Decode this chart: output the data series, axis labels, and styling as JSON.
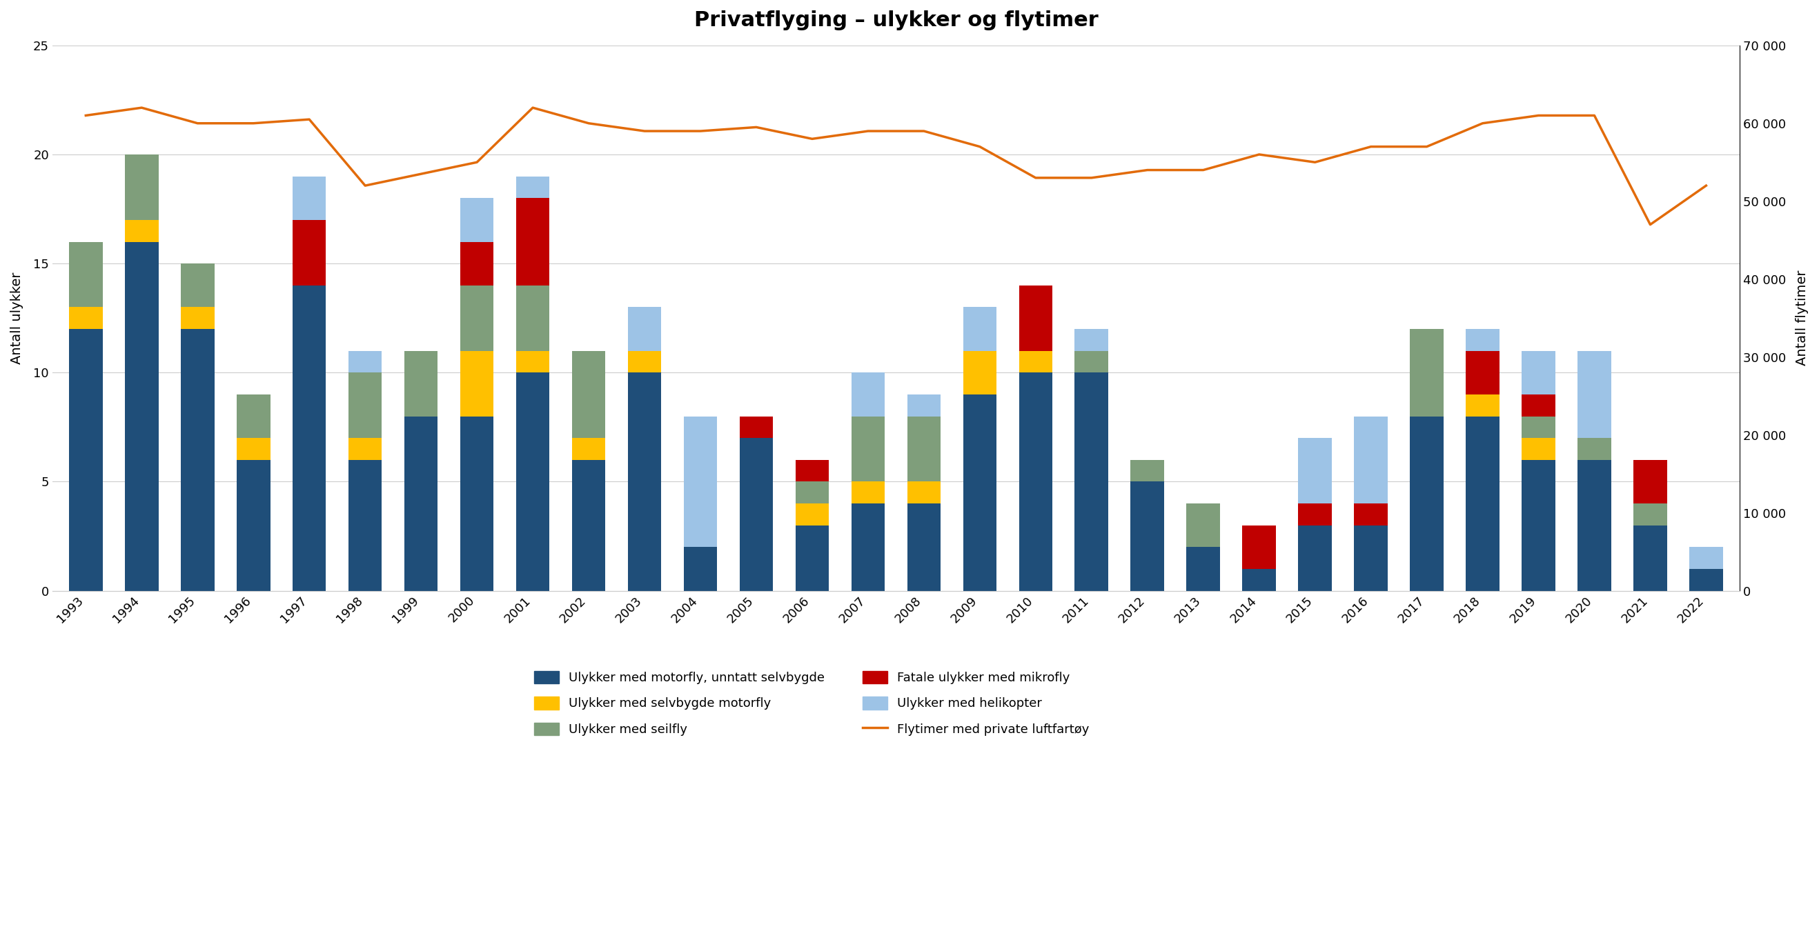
{
  "title": "Privatflyging – ulykker og flytimer",
  "years": [
    1993,
    1994,
    1995,
    1996,
    1997,
    1998,
    1999,
    2000,
    2001,
    2002,
    2003,
    2004,
    2005,
    2006,
    2007,
    2008,
    2009,
    2010,
    2011,
    2012,
    2013,
    2014,
    2015,
    2016,
    2017,
    2018,
    2019,
    2020,
    2021,
    2022
  ],
  "motorfly": [
    12,
    16,
    12,
    6,
    14,
    6,
    8,
    8,
    10,
    6,
    10,
    2,
    7,
    3,
    4,
    4,
    9,
    10,
    10,
    5,
    2,
    1,
    3,
    3,
    8,
    8,
    6,
    6,
    3,
    1
  ],
  "selvbygde": [
    1,
    1,
    1,
    1,
    0,
    1,
    0,
    3,
    1,
    1,
    1,
    0,
    0,
    1,
    1,
    1,
    2,
    1,
    0,
    0,
    0,
    0,
    0,
    0,
    0,
    1,
    1,
    0,
    0,
    0
  ],
  "seilfly": [
    3,
    3,
    2,
    2,
    0,
    3,
    3,
    3,
    3,
    4,
    0,
    0,
    0,
    1,
    3,
    3,
    0,
    0,
    1,
    1,
    2,
    0,
    0,
    0,
    4,
    0,
    1,
    1,
    1,
    0
  ],
  "mikrofly_fatal": [
    0,
    0,
    0,
    0,
    3,
    0,
    0,
    2,
    4,
    0,
    0,
    0,
    1,
    1,
    0,
    0,
    0,
    3,
    0,
    0,
    0,
    2,
    1,
    1,
    0,
    2,
    1,
    0,
    2,
    0
  ],
  "helikopter": [
    0,
    0,
    0,
    0,
    2,
    1,
    0,
    2,
    1,
    0,
    2,
    6,
    0,
    0,
    2,
    1,
    2,
    0,
    1,
    0,
    0,
    0,
    3,
    4,
    0,
    1,
    2,
    4,
    0,
    1
  ],
  "flytimer": [
    61000,
    62000,
    60000,
    60000,
    60500,
    52000,
    53500,
    55000,
    62000,
    60000,
    59000,
    59000,
    59500,
    58000,
    59000,
    59000,
    57000,
    53000,
    53000,
    54000,
    54000,
    56000,
    55000,
    57000,
    57000,
    60000,
    61000,
    61000,
    47000,
    52000
  ],
  "ylabel_left": "Antall ulykker",
  "ylabel_right": "Antall flytimer",
  "ylim_left": [
    0,
    25
  ],
  "ylim_right": [
    0,
    70000
  ],
  "yticks_left": [
    0,
    5,
    10,
    15,
    20,
    25
  ],
  "yticks_right": [
    0,
    10000,
    20000,
    30000,
    40000,
    50000,
    60000,
    70000
  ],
  "ytick_labels_right": [
    "0",
    "10 000",
    "20 000",
    "30 000",
    "40 000",
    "50 000",
    "60 000",
    "70 000"
  ],
  "color_motorfly": "#1F4E79",
  "color_selvbygde": "#FFC000",
  "color_seilfly": "#7F9E7B",
  "color_mikrofly_fatal": "#C00000",
  "color_helikopter": "#9DC3E6",
  "color_flytimer": "#E26B0A",
  "legend_labels": [
    "Ulykker med motorfly, unntatt selvbygde",
    "Ulykker med selvbygde motorfly",
    "Ulykker med seilfly",
    "Fatale ulykker med mikrofly",
    "Ulykker med helikopter",
    "Flytimer med private luftfartøy"
  ],
  "background_color": "#FFFFFF"
}
